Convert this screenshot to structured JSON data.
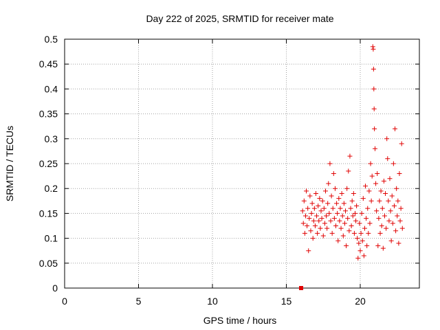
{
  "chart_data": {
    "type": "scatter",
    "title": "Day 222 of 2025, SRMTID for receiver mate",
    "xlabel": "GPS time / hours",
    "ylabel": "SRMTID / TECUs",
    "xlim": [
      0,
      24
    ],
    "ylim": [
      0,
      0.5
    ],
    "xticks": [
      0,
      5,
      10,
      15,
      20
    ],
    "xtick_labels": [
      "0",
      "5",
      "10",
      "15",
      "20"
    ],
    "yticks": [
      0,
      0.05,
      0.1,
      0.15,
      0.2,
      0.25,
      0.3,
      0.35,
      0.4,
      0.45,
      0.5
    ],
    "ytick_labels": [
      "0",
      "0.05",
      "0.1",
      "0.15",
      "0.2",
      "0.25",
      "0.3",
      "0.35",
      "0.4",
      "0.45",
      "0.5"
    ],
    "grid": true,
    "marker": "+",
    "marker_color": "#e00000",
    "axis_color": "#000000",
    "grid_color": "#a0a0a0",
    "square_points": [
      {
        "x": 16.0,
        "y": 0.0
      }
    ],
    "series": [
      {
        "name": "SRMTID",
        "points": [
          [
            16.1,
            0.155
          ],
          [
            16.15,
            0.13
          ],
          [
            16.2,
            0.175
          ],
          [
            16.25,
            0.11
          ],
          [
            16.3,
            0.145
          ],
          [
            16.35,
            0.195
          ],
          [
            16.4,
            0.125
          ],
          [
            16.45,
            0.16
          ],
          [
            16.5,
            0.075
          ],
          [
            16.55,
            0.14
          ],
          [
            16.6,
            0.185
          ],
          [
            16.65,
            0.115
          ],
          [
            16.7,
            0.15
          ],
          [
            16.75,
            0.17
          ],
          [
            16.8,
            0.1
          ],
          [
            16.85,
            0.135
          ],
          [
            16.9,
            0.16
          ],
          [
            16.95,
            0.125
          ],
          [
            17.0,
            0.19
          ],
          [
            17.05,
            0.145
          ],
          [
            17.1,
            0.11
          ],
          [
            17.15,
            0.165
          ],
          [
            17.2,
            0.135
          ],
          [
            17.25,
            0.18
          ],
          [
            17.3,
            0.12
          ],
          [
            17.35,
            0.155
          ],
          [
            17.4,
            0.14
          ],
          [
            17.45,
            0.175
          ],
          [
            17.5,
            0.105
          ],
          [
            17.55,
            0.16
          ],
          [
            17.6,
            0.13
          ],
          [
            17.65,
            0.195
          ],
          [
            17.7,
            0.145
          ],
          [
            17.75,
            0.12
          ],
          [
            17.8,
            0.17
          ],
          [
            17.85,
            0.21
          ],
          [
            17.9,
            0.15
          ],
          [
            17.95,
            0.25
          ],
          [
            18.0,
            0.135
          ],
          [
            18.05,
            0.185
          ],
          [
            18.1,
            0.11
          ],
          [
            18.15,
            0.16
          ],
          [
            18.2,
            0.23
          ],
          [
            18.25,
            0.14
          ],
          [
            18.3,
            0.2
          ],
          [
            18.35,
            0.125
          ],
          [
            18.4,
            0.17
          ],
          [
            18.45,
            0.15
          ],
          [
            18.5,
            0.095
          ],
          [
            18.55,
            0.18
          ],
          [
            18.6,
            0.135
          ],
          [
            18.65,
            0.16
          ],
          [
            18.7,
            0.12
          ],
          [
            18.75,
            0.19
          ],
          [
            18.8,
            0.145
          ],
          [
            18.85,
            0.105
          ],
          [
            18.9,
            0.17
          ],
          [
            18.95,
            0.13
          ],
          [
            19.0,
            0.155
          ],
          [
            19.05,
            0.085
          ],
          [
            19.1,
            0.2
          ],
          [
            19.15,
            0.14
          ],
          [
            19.2,
            0.235
          ],
          [
            19.25,
            0.115
          ],
          [
            19.3,
            0.265
          ],
          [
            19.35,
            0.16
          ],
          [
            19.4,
            0.125
          ],
          [
            19.45,
            0.175
          ],
          [
            19.5,
            0.145
          ],
          [
            19.55,
            0.19
          ],
          [
            19.6,
            0.11
          ],
          [
            19.65,
            0.15
          ],
          [
            19.7,
            0.135
          ],
          [
            19.75,
            0.165
          ],
          [
            19.8,
            0.1
          ],
          [
            19.85,
            0.06
          ],
          [
            19.9,
            0.09
          ],
          [
            19.95,
            0.13
          ],
          [
            20.0,
            0.075
          ],
          [
            20.05,
            0.11
          ],
          [
            20.1,
            0.15
          ],
          [
            20.15,
            0.095
          ],
          [
            20.2,
            0.18
          ],
          [
            20.25,
            0.065
          ],
          [
            20.3,
            0.12
          ],
          [
            20.35,
            0.205
          ],
          [
            20.4,
            0.14
          ],
          [
            20.45,
            0.085
          ],
          [
            20.5,
            0.16
          ],
          [
            20.55,
            0.11
          ],
          [
            20.6,
            0.195
          ],
          [
            20.65,
            0.13
          ],
          [
            20.7,
            0.25
          ],
          [
            20.75,
            0.175
          ],
          [
            20.8,
            0.225
          ],
          [
            20.85,
            0.485
          ],
          [
            20.88,
            0.48
          ],
          [
            20.9,
            0.44
          ],
          [
            20.92,
            0.4
          ],
          [
            20.94,
            0.36
          ],
          [
            20.96,
            0.32
          ],
          [
            21.0,
            0.28
          ],
          [
            21.05,
            0.21
          ],
          [
            21.1,
            0.155
          ],
          [
            21.15,
            0.23
          ],
          [
            21.2,
            0.085
          ],
          [
            21.25,
            0.14
          ],
          [
            21.3,
            0.175
          ],
          [
            21.35,
            0.11
          ],
          [
            21.4,
            0.195
          ],
          [
            21.45,
            0.125
          ],
          [
            21.5,
            0.16
          ],
          [
            21.55,
            0.08
          ],
          [
            21.6,
            0.215
          ],
          [
            21.65,
            0.145
          ],
          [
            21.7,
            0.19
          ],
          [
            21.75,
            0.12
          ],
          [
            21.8,
            0.3
          ],
          [
            21.85,
            0.26
          ],
          [
            21.9,
            0.175
          ],
          [
            21.95,
            0.135
          ],
          [
            22.0,
            0.22
          ],
          [
            22.05,
            0.155
          ],
          [
            22.1,
            0.095
          ],
          [
            22.15,
            0.185
          ],
          [
            22.2,
            0.13
          ],
          [
            22.25,
            0.25
          ],
          [
            22.3,
            0.165
          ],
          [
            22.35,
            0.32
          ],
          [
            22.4,
            0.115
          ],
          [
            22.45,
            0.2
          ],
          [
            22.5,
            0.145
          ],
          [
            22.55,
            0.175
          ],
          [
            22.6,
            0.09
          ],
          [
            22.65,
            0.23
          ],
          [
            22.7,
            0.135
          ],
          [
            22.75,
            0.16
          ],
          [
            22.8,
            0.29
          ],
          [
            22.85,
            0.12
          ]
        ]
      }
    ]
  }
}
